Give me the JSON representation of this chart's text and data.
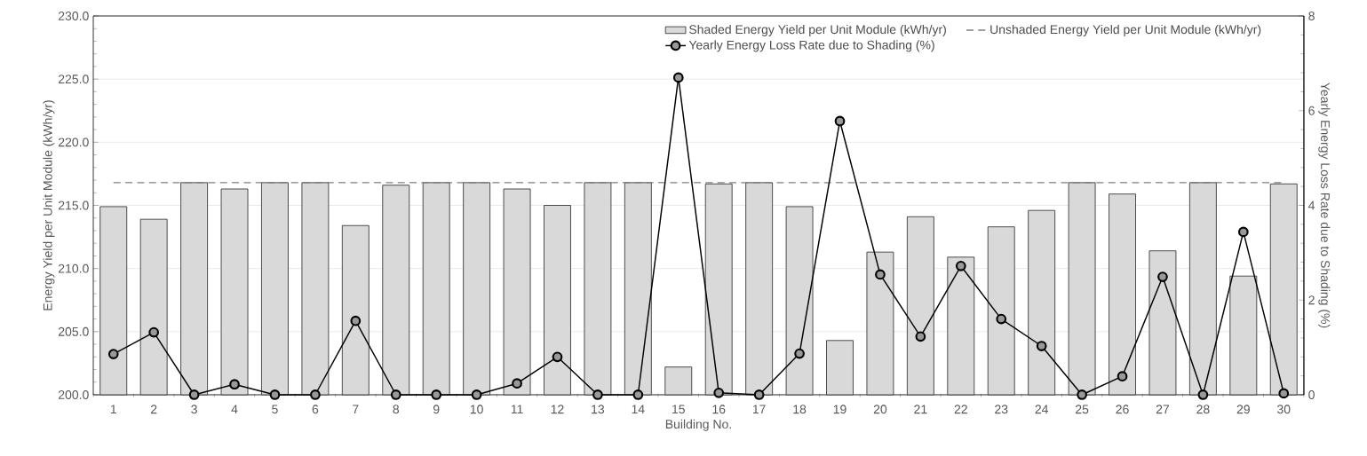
{
  "chart_data": {
    "type": "bar",
    "xlabel": "Building No.",
    "ylabel": "Energy Yield per Unit Module (kWh/yr)",
    "y2label": "Yearly Energy Loss Rate due to Shading (%)",
    "categories": [
      "1",
      "2",
      "3",
      "4",
      "5",
      "6",
      "7",
      "8",
      "9",
      "10",
      "11",
      "12",
      "13",
      "14",
      "15",
      "16",
      "17",
      "18",
      "19",
      "20",
      "21",
      "22",
      "23",
      "24",
      "25",
      "26",
      "27",
      "28",
      "29",
      "30"
    ],
    "series": [
      {
        "name": "Shaded Energy Yield per Unit Module (kWh/yr)",
        "color": "#d9d9d9",
        "values": [
          214.9,
          213.9,
          216.8,
          216.3,
          216.8,
          216.8,
          213.4,
          216.6,
          216.8,
          216.8,
          216.3,
          215.0,
          216.8,
          216.8,
          202.2,
          216.7,
          216.8,
          214.9,
          204.3,
          211.3,
          214.1,
          210.9,
          213.3,
          214.6,
          216.8,
          215.9,
          211.4,
          216.8,
          209.4,
          216.7
        ]
      },
      {
        "name": "Unshaded Energy Yield per Unit Module (kWh/yr)",
        "type": "line",
        "color": "#808080",
        "line_style": "dashed",
        "marker": "none",
        "values": [
          216.8,
          216.8,
          216.8,
          216.8,
          216.8,
          216.8,
          216.8,
          216.8,
          216.8,
          216.8,
          216.8,
          216.8,
          216.8,
          216.8,
          216.8,
          216.8,
          216.8,
          216.8,
          216.8,
          216.8,
          216.8,
          216.8,
          216.8,
          216.8,
          216.8,
          216.8,
          216.8,
          216.8,
          216.8,
          216.8
        ]
      },
      {
        "name": "Yearly Energy Loss Rate due to Shading (%)",
        "type": "line",
        "axis": "y2",
        "color": "#000000",
        "line_style": "solid",
        "marker": "circle",
        "values": [
          0.86,
          1.32,
          0,
          0.22,
          0,
          0,
          1.56,
          0,
          0,
          0,
          0.24,
          0.8,
          0,
          0,
          6.7,
          0.04,
          0,
          0.87,
          5.78,
          2.54,
          1.23,
          2.72,
          1.6,
          1.03,
          0,
          0.39,
          2.49,
          0,
          3.44,
          0.03
        ]
      }
    ],
    "ylim": [
      200,
      230
    ],
    "yticks": [
      {
        "value": 200,
        "label": "200.0"
      },
      {
        "value": 205,
        "label": "205.0"
      },
      {
        "value": 210,
        "label": "210.0"
      },
      {
        "value": 215,
        "label": "215.0"
      },
      {
        "value": 220,
        "label": "220.0"
      },
      {
        "value": 225,
        "label": "225.0"
      },
      {
        "value": 230,
        "label": "230.0"
      }
    ],
    "y2lim": [
      0,
      8
    ],
    "y2ticks": [
      0,
      2,
      4,
      6,
      8
    ],
    "grid": "y",
    "legend": "top right"
  }
}
